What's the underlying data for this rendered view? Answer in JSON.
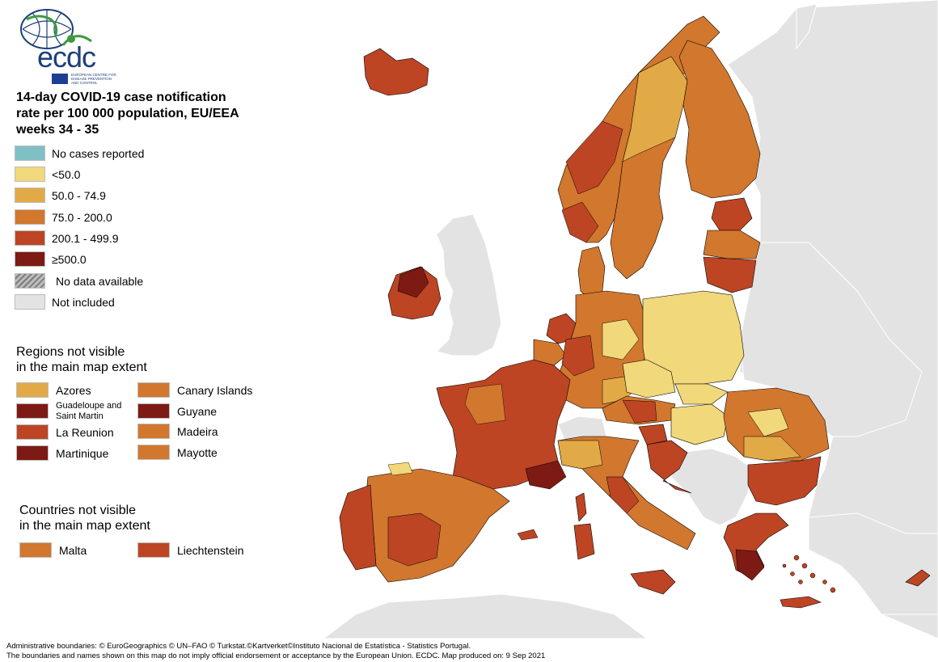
{
  "logo": {
    "name": "ecdc",
    "subtitle": "EUROPEAN CENTRE FOR DISEASE PREVENTION AND CONTROL"
  },
  "title": {
    "line1": "14-day COVID-19 case notification",
    "line2": "rate per 100 000 population, EU/EEA",
    "line3": "weeks 34 - 35"
  },
  "legend": [
    {
      "label": "No cases reported",
      "color": "#7fbfc6"
    },
    {
      "label": "<50.0",
      "color": "#f1d87a"
    },
    {
      "label": "50.0 - 74.9",
      "color": "#e2a947"
    },
    {
      "label": "75.0 - 200.0",
      "color": "#d2772e"
    },
    {
      "label": "200.1 - 499.9",
      "color": "#bd4524"
    },
    {
      "label": "≥500.0",
      "color": "#7d1a14"
    },
    {
      "label": "No data available",
      "color": "hatch"
    },
    {
      "label": "Not included",
      "color": "#e3e3e3"
    }
  ],
  "regions_not_visible": {
    "heading_line1": "Regions not visible",
    "heading_line2": "in the main map extent",
    "items": [
      {
        "label": "Azores",
        "color": "#e2a947"
      },
      {
        "label": "Canary Islands",
        "color": "#d2772e"
      },
      {
        "label": "Guadeloupe and Saint Martin",
        "color": "#7d1a14"
      },
      {
        "label": "Guyane",
        "color": "#7d1a14"
      },
      {
        "label": "La Reunion",
        "color": "#bd4524"
      },
      {
        "label": "Madeira",
        "color": "#d2772e"
      },
      {
        "label": "Martinique",
        "color": "#7d1a14"
      },
      {
        "label": "Mayotte",
        "color": "#d2772e"
      }
    ]
  },
  "countries_not_visible": {
    "heading_line1": "Countries not visible",
    "heading_line2": "in the main map extent",
    "items": [
      {
        "label": "Malta",
        "color": "#d2772e"
      },
      {
        "label": "Liechtenstein",
        "color": "#bd4524"
      }
    ]
  },
  "footer": {
    "line1": "Administrative boundaries: © EuroGeographics © UN–FAO © Turkstat.©Kartverket©Instituto Nacional de Estatística - Statistics Portugal.",
    "line2": "The boundaries and names shown on this map do not imply official endorsement or acceptance by the European Union. ECDC. Map produced on: 9 Sep 2021"
  }
}
